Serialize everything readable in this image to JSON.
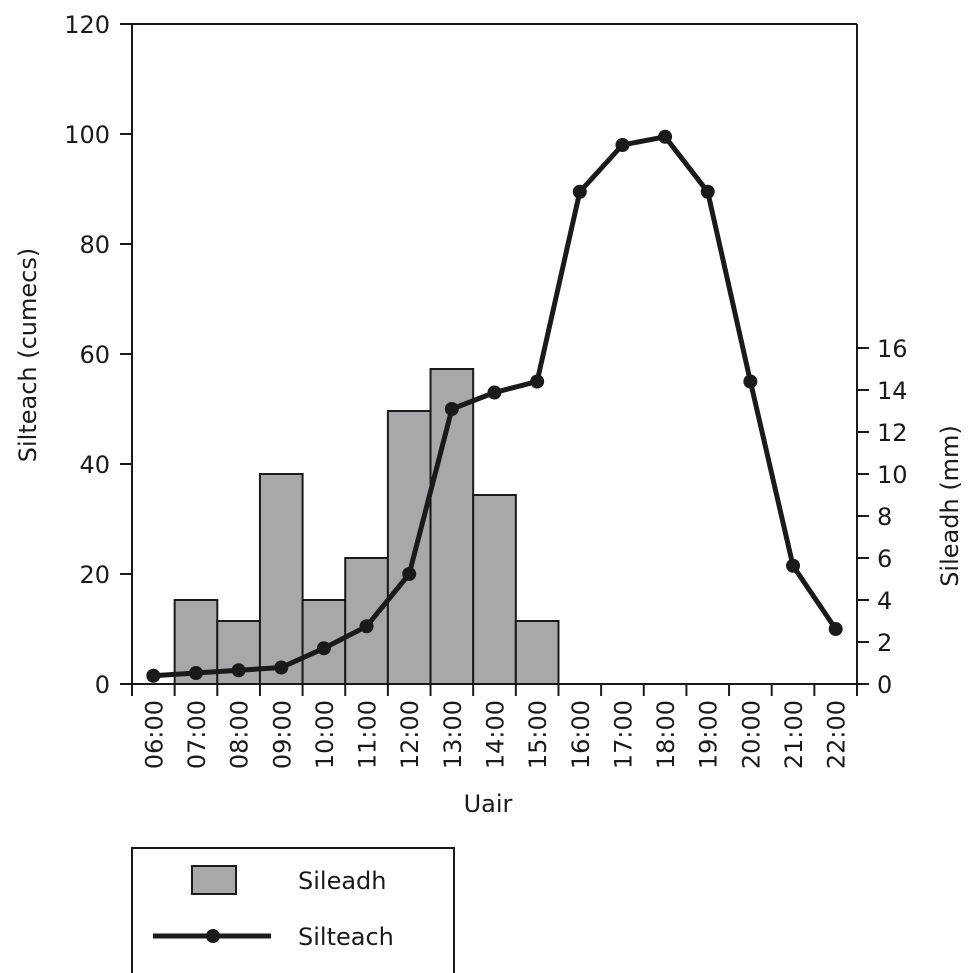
{
  "chart_data": {
    "type": "bar+line",
    "title": "",
    "xlabel": "Uair",
    "ylabel_left": "Silteach (cumecs)",
    "ylabel_right": "Sileadh (mm)",
    "categories": [
      "06:00",
      "07:00",
      "08:00",
      "09:00",
      "10:00",
      "11:00",
      "12:00",
      "13:00",
      "14:00",
      "15:00",
      "16:00",
      "17:00",
      "18:00",
      "19:00",
      "20:00",
      "21:00",
      "22:00"
    ],
    "left_axis": {
      "ylim": [
        0,
        120
      ],
      "ticks": [
        0,
        20,
        40,
        60,
        80,
        100,
        120
      ]
    },
    "right_axis": {
      "ylim": [
        0,
        16
      ],
      "ticks": [
        0,
        2,
        4,
        6,
        8,
        10,
        12,
        14,
        16
      ]
    },
    "grid": false,
    "legend_position": "bottom-left",
    "series": [
      {
        "name": "Sileadh",
        "type": "bar",
        "axis": "right",
        "color": "#a8a8aa",
        "values": [
          0,
          4,
          3,
          10,
          4,
          6,
          13,
          15,
          9,
          3,
          0,
          0,
          0,
          0,
          0,
          0,
          0
        ]
      },
      {
        "name": "Silteach",
        "type": "line",
        "axis": "left",
        "color": "#1a1a1a",
        "values": [
          1.5,
          2,
          2.5,
          3,
          6.5,
          10.5,
          20,
          50,
          53,
          55,
          89.5,
          98,
          99.5,
          89.5,
          55,
          21.5,
          10
        ]
      }
    ]
  }
}
